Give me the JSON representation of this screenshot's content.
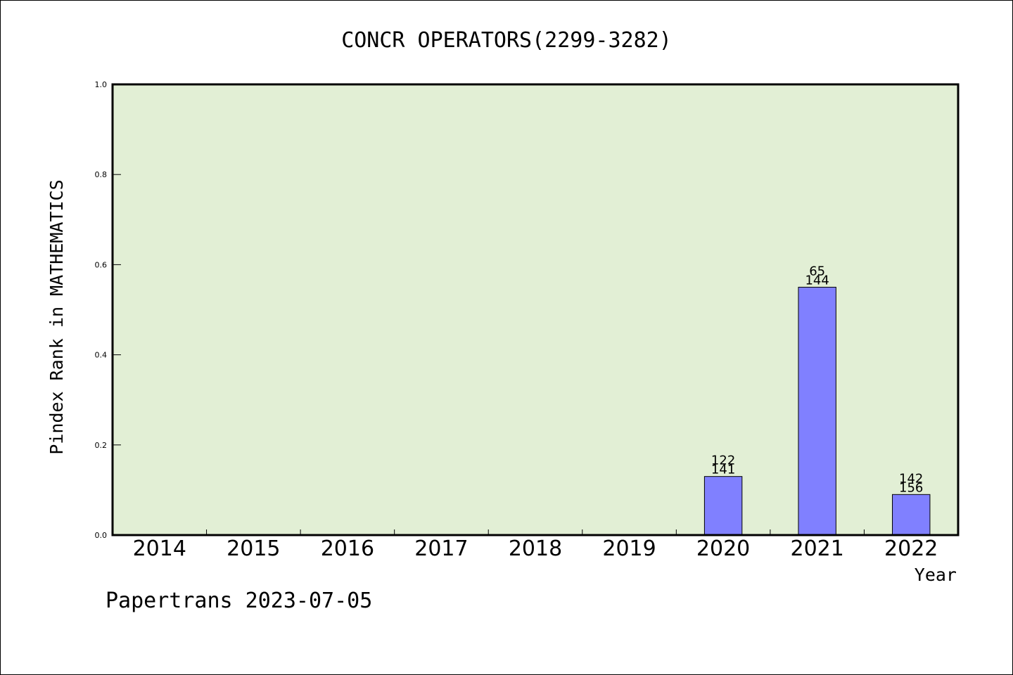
{
  "chart_data": {
    "type": "bar",
    "title": "CONCR OPERATORS(2299-3282)",
    "xlabel": "Year",
    "ylabel": "Pindex Rank in MATHEMATICS",
    "footer": "Papertrans 2023-07-05",
    "categories": [
      "2014",
      "2015",
      "2016",
      "2017",
      "2018",
      "2019",
      "2020",
      "2021",
      "2022"
    ],
    "series": [
      {
        "values": [
          null,
          null,
          null,
          null,
          null,
          null,
          0.13,
          0.55,
          0.09
        ],
        "labels": [
          null,
          null,
          null,
          null,
          null,
          null,
          [
            "122",
            "141"
          ],
          [
            "65",
            "144"
          ],
          [
            "142",
            "156"
          ]
        ]
      }
    ],
    "ylim": [
      0.0,
      1.0
    ],
    "yticks": [
      "0.0",
      "0.2",
      "0.4",
      "0.6",
      "0.8",
      "1.0"
    ],
    "grid": false,
    "colors": {
      "plot_background": "#e2efd5",
      "bar_fill": "#8080ff",
      "bar_stroke": "#000000",
      "axis": "#000000"
    }
  }
}
